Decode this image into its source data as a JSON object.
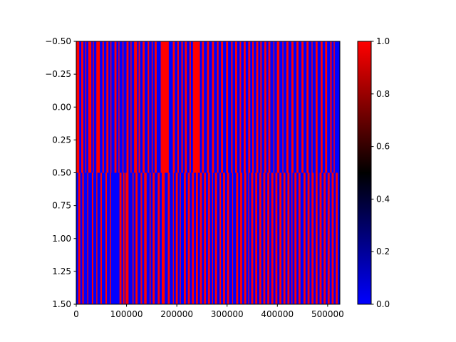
{
  "chart_data": {
    "type": "heatmap",
    "title": "",
    "xlabel": "",
    "ylabel": "",
    "xlim": [
      0,
      524288
    ],
    "ylim": [
      1.5,
      -0.5
    ],
    "rows": 2,
    "x_ticks": [
      0,
      100000,
      200000,
      300000,
      400000,
      500000
    ],
    "x_tick_labels": [
      "0",
      "100000",
      "200000",
      "300000",
      "400000",
      "500000"
    ],
    "y_ticks": [
      -0.5,
      -0.25,
      0.0,
      0.25,
      0.5,
      0.75,
      1.0,
      1.25,
      1.5
    ],
    "y_tick_labels": [
      "−0.50",
      "−0.25",
      "0.00",
      "0.25",
      "0.50",
      "0.75",
      "1.00",
      "1.25",
      "1.50"
    ],
    "values_description": "binary red/blue stripes; row 0 is mostly red with many blue stripes, row 1 is mostly blue with many red stripes",
    "row_red_segments": [
      [
        [
          0,
          6000
        ],
        [
          10000,
          14000
        ],
        [
          18000,
          20000
        ],
        [
          24000,
          30000
        ],
        [
          33000,
          35000
        ],
        [
          40000,
          47000
        ],
        [
          52000,
          55000
        ],
        [
          60000,
          64000
        ],
        [
          68000,
          70000
        ],
        [
          76000,
          80000
        ],
        [
          84000,
          86000
        ],
        [
          92000,
          94000
        ],
        [
          100000,
          104000
        ],
        [
          108000,
          110000
        ],
        [
          115000,
          121000
        ],
        [
          124000,
          127000
        ],
        [
          132000,
          136000
        ],
        [
          142000,
          145000
        ],
        [
          150000,
          152000
        ],
        [
          156000,
          160000
        ],
        [
          168000,
          184000
        ],
        [
          192000,
          196000
        ],
        [
          201000,
          204000
        ],
        [
          209000,
          212000
        ],
        [
          216000,
          220000
        ],
        [
          225000,
          228000
        ],
        [
          232000,
          246000
        ],
        [
          250000,
          254000
        ],
        [
          260000,
          264000
        ],
        [
          270000,
          274000
        ],
        [
          280000,
          283000
        ],
        [
          288000,
          292000
        ],
        [
          298000,
          302000
        ],
        [
          308000,
          311000
        ],
        [
          316000,
          320000
        ],
        [
          325000,
          328000
        ],
        [
          333000,
          337000
        ],
        [
          342000,
          346000
        ],
        [
          350000,
          353000
        ],
        [
          358000,
          362000
        ],
        [
          366000,
          369000
        ],
        [
          374000,
          378000
        ],
        [
          382000,
          386000
        ],
        [
          392000,
          394000
        ],
        [
          399000,
          404000
        ],
        [
          410000,
          412000
        ],
        [
          418000,
          422000
        ],
        [
          428000,
          432000
        ],
        [
          438000,
          442000
        ],
        [
          448000,
          452000
        ],
        [
          458000,
          462000
        ],
        [
          468000,
          470000
        ],
        [
          476000,
          480000
        ],
        [
          486000,
          490000
        ],
        [
          495000,
          499000
        ],
        [
          505000,
          508000
        ],
        [
          512000,
          514000
        ]
      ],
      [
        [
          4000,
          8000
        ],
        [
          12000,
          15000
        ],
        [
          22000,
          24000
        ],
        [
          31000,
          34000
        ],
        [
          40000,
          42000
        ],
        [
          48000,
          51000
        ],
        [
          58000,
          61000
        ],
        [
          67000,
          69000
        ],
        [
          86000,
          90000
        ],
        [
          93000,
          96000
        ],
        [
          98000,
          104000
        ],
        [
          112000,
          114000
        ],
        [
          118000,
          122000
        ],
        [
          128000,
          131000
        ],
        [
          135000,
          140000
        ],
        [
          146000,
          148000
        ],
        [
          152000,
          156000
        ],
        [
          162000,
          166000
        ],
        [
          170000,
          176000
        ],
        [
          182000,
          186000
        ],
        [
          192000,
          194000
        ],
        [
          198000,
          202000
        ],
        [
          206000,
          208000
        ],
        [
          214000,
          218000
        ],
        [
          222000,
          226000
        ],
        [
          230000,
          234000
        ],
        [
          238000,
          242000
        ],
        [
          246000,
          250000
        ],
        [
          254000,
          258000
        ],
        [
          262000,
          266000
        ],
        [
          270000,
          272000
        ],
        [
          276000,
          280000
        ],
        [
          285000,
          288000
        ],
        [
          292000,
          296000
        ],
        [
          300000,
          304000
        ],
        [
          310000,
          312000
        ],
        [
          318000,
          322000
        ],
        [
          326000,
          330000
        ],
        [
          334000,
          338000
        ],
        [
          342000,
          344000
        ],
        [
          348000,
          352000
        ],
        [
          356000,
          360000
        ],
        [
          364000,
          368000
        ],
        [
          372000,
          376000
        ],
        [
          380000,
          384000
        ],
        [
          388000,
          392000
        ],
        [
          396000,
          400000
        ],
        [
          404000,
          408000
        ],
        [
          412000,
          416000
        ],
        [
          420000,
          424000
        ],
        [
          428000,
          430000
        ],
        [
          434000,
          438000
        ],
        [
          442000,
          446000
        ],
        [
          452000,
          456000
        ],
        [
          460000,
          464000
        ],
        [
          468000,
          472000
        ],
        [
          476000,
          480000
        ],
        [
          484000,
          488000
        ],
        [
          492000,
          496000
        ],
        [
          500000,
          504000
        ],
        [
          508000,
          512000
        ],
        [
          516000,
          520000
        ]
      ]
    ],
    "colorbar": {
      "min": 0.0,
      "max": 1.0,
      "ticks": [
        0.0,
        0.2,
        0.4,
        0.6,
        0.8,
        1.0
      ],
      "tick_labels": [
        "0.0",
        "0.2",
        "0.4",
        "0.6",
        "0.8",
        "1.0"
      ],
      "colormap": [
        "#0000ff",
        "#000000",
        "#ff0000"
      ]
    },
    "colors": {
      "low": "#0000ff",
      "high": "#ff0000",
      "mid": "#000000"
    }
  }
}
